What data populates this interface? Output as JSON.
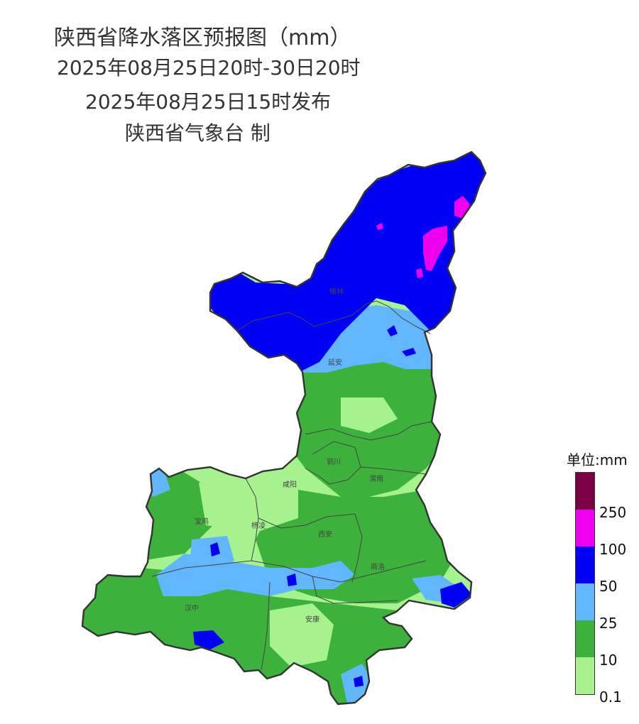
{
  "title": {
    "line1": "陕西省降水落区预报图（mm）",
    "line2": "2025年08月25日20时-30日20时",
    "line3": "2025年08月25日15时发布",
    "line4": "陕西省气象台 制"
  },
  "cities": [
    {
      "name": "榆林"
    },
    {
      "name": "延安"
    },
    {
      "name": "铜川"
    },
    {
      "name": "咸阳"
    },
    {
      "name": "渭南"
    },
    {
      "name": "宝鸡"
    },
    {
      "name": "杨凌"
    },
    {
      "name": "西安"
    },
    {
      "name": "商洛"
    },
    {
      "name": "汉中"
    },
    {
      "name": "安康"
    }
  ],
  "legend": {
    "title": "单位:mm",
    "classes": [
      {
        "color": "#7b0044"
      },
      {
        "color": "#ee00ee",
        "label": "250"
      },
      {
        "color": "#0000f5",
        "label": "100"
      },
      {
        "color": "#62b7fc",
        "label": "50"
      },
      {
        "color": "#3cb23c",
        "label": "25"
      },
      {
        "color": "#a6f28f",
        "label": "10"
      },
      {
        "label": "0.1"
      }
    ]
  },
  "colors": {
    "purple": "#7b0044",
    "magenta": "#ee00ee",
    "blue": "#0000f5",
    "light_blue": "#62b7fc",
    "green": "#3cb23c",
    "light_green": "#a6f28f",
    "boundary": "#333333"
  }
}
